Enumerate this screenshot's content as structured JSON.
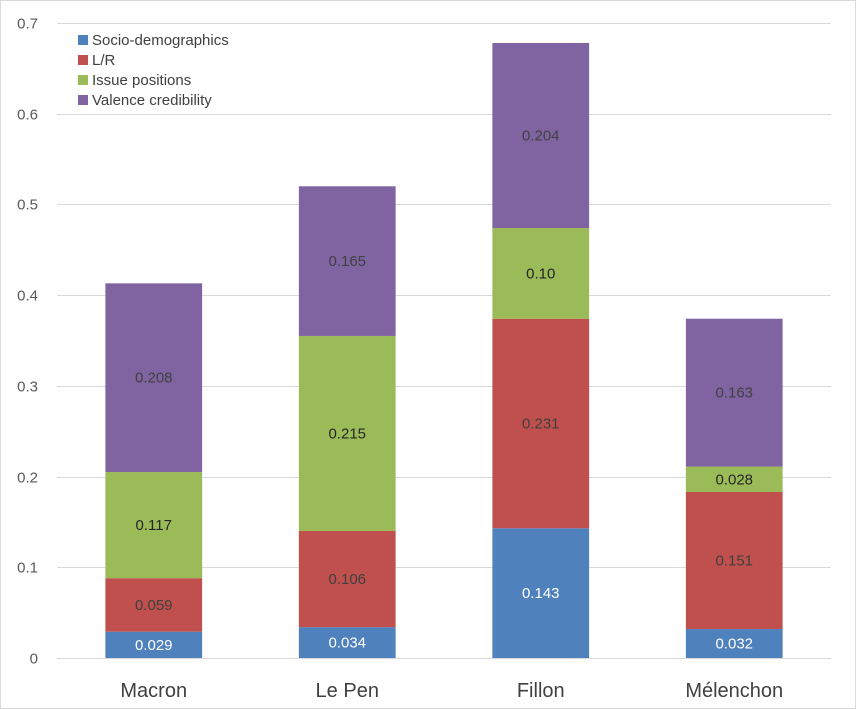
{
  "chart_data": {
    "type": "bar",
    "stacked": true,
    "title": "",
    "xlabel": "",
    "ylabel": "",
    "ylim": [
      0,
      0.7
    ],
    "yticks": [
      0,
      0.1,
      0.2,
      0.3,
      0.4,
      0.5,
      0.6,
      0.7
    ],
    "ytick_labels": [
      "0",
      "0.1",
      "0.2",
      "0.3",
      "0.4",
      "0.5",
      "0.6",
      "0.7"
    ],
    "grid": true,
    "legend_position": "top-left",
    "categories": [
      "Macron",
      "Le Pen",
      "Fillon",
      "Mélenchon"
    ],
    "series": [
      {
        "name": "Socio-demographics",
        "color": "#4f81bd",
        "values": [
          0.029,
          0.034,
          0.143,
          0.032
        ],
        "labels": [
          "0.029",
          "0.034",
          "0.143",
          "0.032"
        ],
        "label_color": "#ffffff"
      },
      {
        "name": "L/R",
        "color": "#c0504d",
        "values": [
          0.059,
          0.106,
          0.231,
          0.151
        ],
        "labels": [
          "0.059",
          "0.106",
          "0.231",
          "0.151"
        ],
        "label_color": "#404040"
      },
      {
        "name": "Issue positions",
        "color": "#9bbb59",
        "values": [
          0.117,
          0.215,
          0.1,
          0.028
        ],
        "labels": [
          "0.117",
          "0.215",
          "0.10",
          "0.028"
        ],
        "label_color": "#262626"
      },
      {
        "name": "Valence credibility",
        "color": "#8064a2",
        "values": [
          0.208,
          0.165,
          0.204,
          0.163
        ],
        "labels": [
          "0.208",
          "0.165",
          "0.204",
          "0.163"
        ],
        "label_color": "#404040"
      }
    ]
  }
}
